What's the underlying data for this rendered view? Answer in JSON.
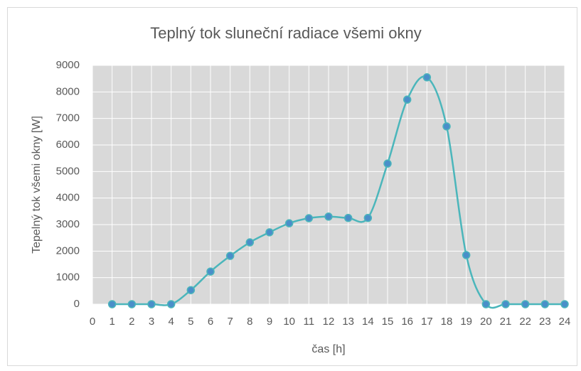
{
  "chart_data": {
    "type": "line",
    "title": "Teplný tok sluneční radiace všemi okny",
    "xlabel": "čas [h]",
    "ylabel": "Tepelný tok všemi okny [W]",
    "x": [
      1,
      2,
      3,
      4,
      5,
      6,
      7,
      8,
      9,
      10,
      11,
      12,
      13,
      14,
      15,
      16,
      17,
      18,
      19,
      20,
      21,
      22,
      23,
      24
    ],
    "values": [
      0,
      0,
      0,
      0,
      530,
      1230,
      1820,
      2330,
      2710,
      3050,
      3240,
      3300,
      3250,
      3250,
      5300,
      7710,
      8550,
      6700,
      1850,
      0,
      0,
      0,
      0,
      0
    ],
    "color": "#4bb6bb",
    "marker_color": "#4a8fc9",
    "smooth": true,
    "xlim": [
      0,
      24
    ],
    "xticks": [
      0,
      1,
      2,
      3,
      4,
      5,
      6,
      7,
      8,
      9,
      10,
      11,
      12,
      13,
      14,
      15,
      16,
      17,
      18,
      19,
      20,
      21,
      22,
      23,
      24
    ],
    "ylim": [
      0,
      9000
    ],
    "yticks": [
      0,
      1000,
      2000,
      3000,
      4000,
      5000,
      6000,
      7000,
      8000,
      9000
    ],
    "grid": true
  }
}
